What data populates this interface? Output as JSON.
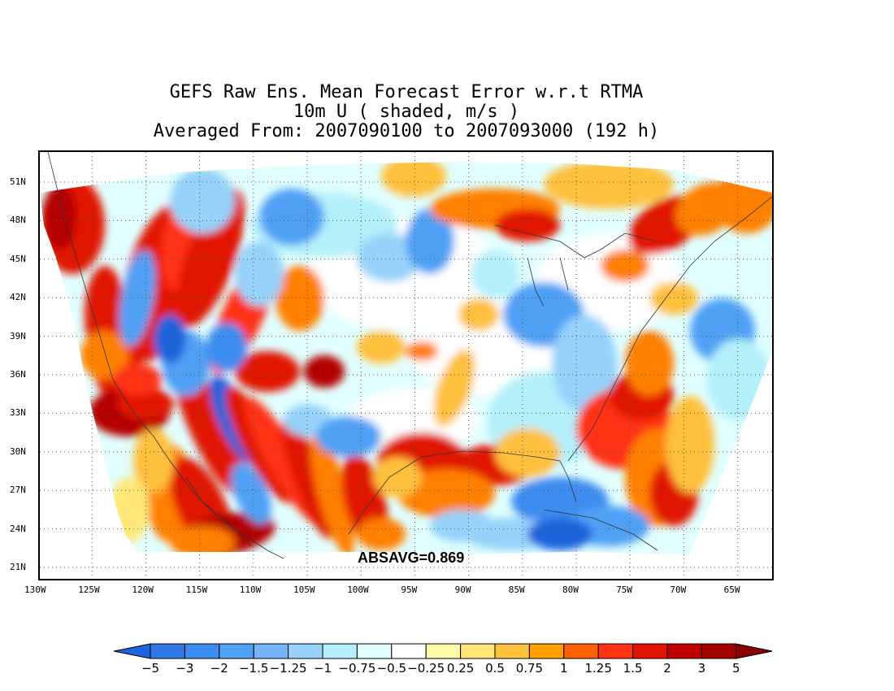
{
  "title": {
    "line1": "GEFS Raw Ens. Mean Forecast Error w.r.t RTMA",
    "line2": "10m U ( shaded, m/s )",
    "line3": "Averaged From: 2007090100 to 2007093000 (192 h)"
  },
  "absavg_label": "ABSAVG=0.869",
  "lat_labels": [
    "51N",
    "48N",
    "45N",
    "42N",
    "39N",
    "36N",
    "33N",
    "30N",
    "27N",
    "24N",
    "21N"
  ],
  "lon_labels": [
    "130W",
    "125W",
    "120W",
    "115W",
    "110W",
    "105W",
    "100W",
    "95W",
    "90W",
    "85W",
    "80W",
    "75W",
    "70W",
    "65W"
  ],
  "colorbar": {
    "labels": [
      "−5",
      "−3",
      "−2",
      "−1.5",
      "−1.25",
      "−1",
      "−0.75",
      "−0.5",
      "−0.25",
      "0.25",
      "0.5",
      "0.75",
      "1",
      "1.25",
      "1.5",
      "2",
      "3",
      "5"
    ],
    "colors": [
      "#1e64dc",
      "#2f78e6",
      "#3c8cf0",
      "#50a0f5",
      "#73b4fa",
      "#96d2fa",
      "#b4f0fa",
      "#e1ffff",
      "#ffffff",
      "#fffaaa",
      "#ffe878",
      "#ffc03c",
      "#ffa000",
      "#ff6000",
      "#ff3214",
      "#e11400",
      "#c00000",
      "#a50000",
      "#8b0000"
    ]
  },
  "field_palette": {
    "deep_red": "#b40000",
    "red": "#e11400",
    "orange_red": "#ff3214",
    "orange": "#ff8000",
    "light_orange": "#ffc03c",
    "yellow": "#ffe878",
    "pale": "#fffaaa",
    "white": "#ffffff",
    "pale_cyan": "#e1ffff",
    "cyan": "#b4f0fa",
    "light_blue": "#96d2fa",
    "blue": "#50a0f5",
    "mid_blue": "#3c8cf0",
    "dark_blue": "#1e64dc"
  }
}
